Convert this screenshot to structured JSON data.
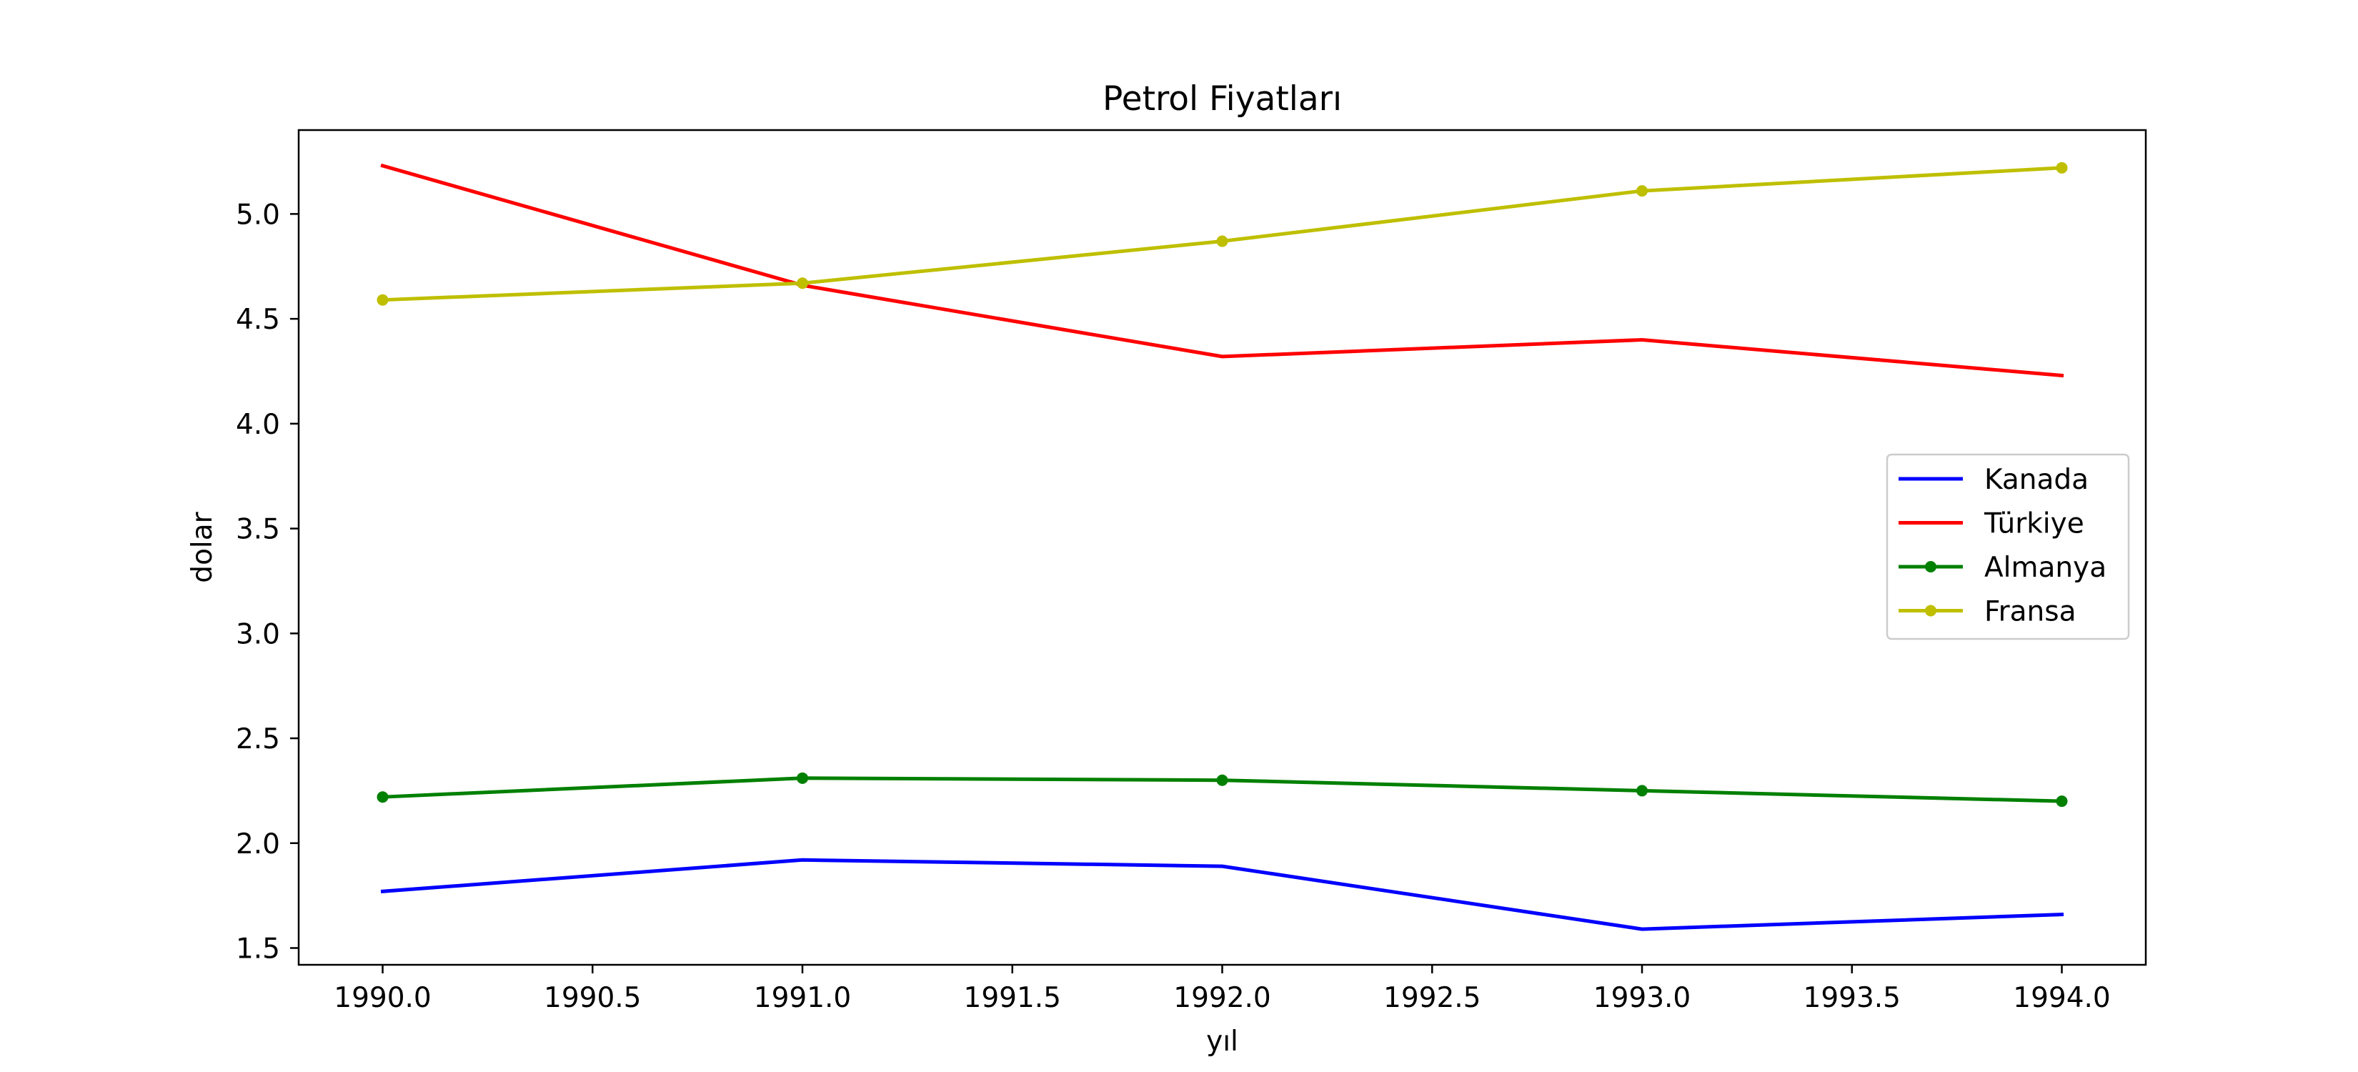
{
  "chart_data": {
    "type": "line",
    "title": "Petrol Fiyatları",
    "xlabel": "yıl",
    "ylabel": "dolar",
    "x": [
      1990,
      1991,
      1992,
      1993,
      1994
    ],
    "xlim": [
      1989.8,
      1994.2
    ],
    "ylim": [
      1.42,
      5.4
    ],
    "xticks": [
      1990.0,
      1990.5,
      1991.0,
      1991.5,
      1992.0,
      1992.5,
      1993.0,
      1993.5,
      1994.0
    ],
    "xtick_labels": [
      "1990.0",
      "1990.5",
      "1991.0",
      "1991.5",
      "1992.0",
      "1992.5",
      "1993.0",
      "1993.5",
      "1994.0"
    ],
    "yticks": [
      1.5,
      2.0,
      2.5,
      3.0,
      3.5,
      4.0,
      4.5,
      5.0
    ],
    "ytick_labels": [
      "1.5",
      "2.0",
      "2.5",
      "3.0",
      "3.5",
      "4.0",
      "4.5",
      "5.0"
    ],
    "grid": false,
    "legend_position": "center-right",
    "series": [
      {
        "name": "Kanada",
        "color": "#0000ff",
        "marker": false,
        "values": [
          1.77,
          1.92,
          1.89,
          1.59,
          1.66
        ]
      },
      {
        "name": "Türkiye",
        "color": "#ff0000",
        "marker": false,
        "values": [
          5.23,
          4.66,
          4.32,
          4.4,
          4.23
        ]
      },
      {
        "name": "Almanya",
        "color": "#008000",
        "marker": true,
        "values": [
          2.22,
          2.31,
          2.3,
          2.25,
          2.2
        ]
      },
      {
        "name": "Fransa",
        "color": "#bfbf00",
        "marker": true,
        "values": [
          4.59,
          4.67,
          4.87,
          5.11,
          5.22
        ]
      }
    ]
  }
}
